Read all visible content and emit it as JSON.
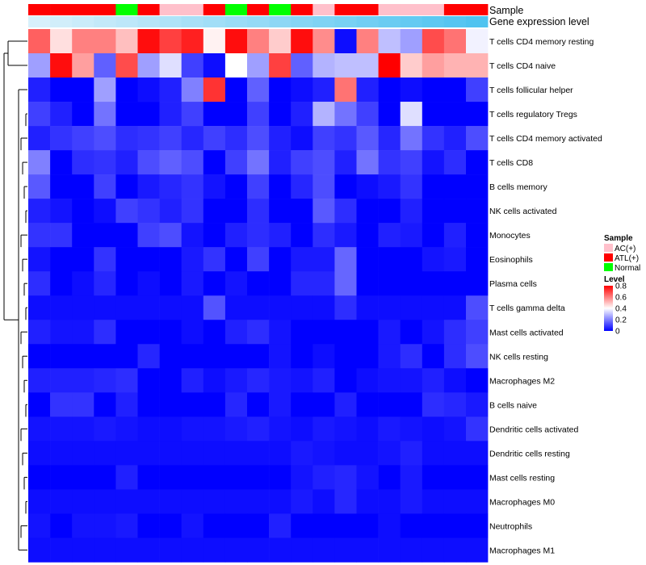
{
  "chart_data": {
    "type": "heatmap",
    "annotation_tracks": [
      {
        "name": "Sample",
        "label": "Sample"
      },
      {
        "name": "Gene expression level",
        "label": "Gene expression level"
      }
    ],
    "sample_annotation": [
      "ATL(+)",
      "ATL(+)",
      "ATL(+)",
      "ATL(+)",
      "Normal",
      "ATL(+)",
      "AC(+)",
      "AC(+)",
      "ATL(+)",
      "Normal",
      "ATL(+)",
      "Normal",
      "ATL(+)",
      "AC(+)",
      "ATL(+)",
      "ATL(+)",
      "AC(+)",
      "AC(+)",
      "AC(+)",
      "ATL(+)",
      "ATL(+)"
    ],
    "expression_level": [
      0.0,
      0.05,
      0.1,
      0.15,
      0.2,
      0.25,
      0.3,
      0.35,
      0.4,
      0.45,
      0.5,
      0.55,
      0.6,
      0.65,
      0.7,
      0.75,
      0.8,
      0.85,
      0.9,
      0.95,
      1.0
    ],
    "rows": [
      "T cells CD4 memory resting",
      "T cells CD4 naive",
      "T cells follicular helper",
      "T cells regulatory  Tregs",
      "T cells CD4 memory activated",
      "T cells CD8",
      "B cells memory",
      "NK cells activated",
      "Monocytes",
      "Eosinophils",
      "Plasma cells",
      "T cells gamma delta",
      "Mast cells activated",
      "NK cells resting",
      "Macrophages M2",
      "B cells naive",
      "Dendritic cells activated",
      "Dendritic cells resting",
      "Mast cells resting",
      "Macrophages M0",
      "Neutrophils",
      "Macrophages M1"
    ],
    "values": [
      [
        0.65,
        0.45,
        0.6,
        0.6,
        0.5,
        0.78,
        0.7,
        0.75,
        0.42,
        0.78,
        0.6,
        0.48,
        0.78,
        0.58,
        0.02,
        0.6,
        0.3,
        0.25,
        0.68,
        0.62,
        0.38
      ],
      [
        0.25,
        0.78,
        0.55,
        0.15,
        0.68,
        0.25,
        0.35,
        0.1,
        0.02,
        0.4,
        0.25,
        0.7,
        0.15,
        0.28,
        0.3,
        0.3,
        0.8,
        0.48,
        0.55,
        0.52,
        0.52
      ],
      [
        0.05,
        0.0,
        0.0,
        0.25,
        0.0,
        0.02,
        0.05,
        0.2,
        0.72,
        0.0,
        0.15,
        0.0,
        0.02,
        0.05,
        0.62,
        0.05,
        0.0,
        0.02,
        0.0,
        0.0,
        0.1
      ],
      [
        0.1,
        0.05,
        0.0,
        0.18,
        0.0,
        0.0,
        0.05,
        0.1,
        0.0,
        0.0,
        0.1,
        0.0,
        0.05,
        0.28,
        0.18,
        0.1,
        0.0,
        0.35,
        0.0,
        0.0,
        0.0
      ],
      [
        0.05,
        0.08,
        0.1,
        0.12,
        0.07,
        0.08,
        0.1,
        0.06,
        0.1,
        0.07,
        0.12,
        0.05,
        0.02,
        0.1,
        0.08,
        0.14,
        0.06,
        0.18,
        0.08,
        0.05,
        0.12
      ],
      [
        0.2,
        0.0,
        0.07,
        0.08,
        0.05,
        0.12,
        0.15,
        0.12,
        0.0,
        0.1,
        0.18,
        0.05,
        0.1,
        0.12,
        0.05,
        0.18,
        0.08,
        0.1,
        0.03,
        0.07,
        0.0
      ],
      [
        0.14,
        0.0,
        0.0,
        0.1,
        0.0,
        0.04,
        0.06,
        0.08,
        0.03,
        0.0,
        0.1,
        0.0,
        0.06,
        0.12,
        0.0,
        0.02,
        0.04,
        0.08,
        0.0,
        0.0,
        0.0
      ],
      [
        0.05,
        0.03,
        0.0,
        0.02,
        0.1,
        0.08,
        0.05,
        0.08,
        0.0,
        0.0,
        0.07,
        0.0,
        0.0,
        0.14,
        0.07,
        0.0,
        0.0,
        0.05,
        0.0,
        0.0,
        0.0
      ],
      [
        0.08,
        0.08,
        0.0,
        0.0,
        0.0,
        0.1,
        0.12,
        0.03,
        0.0,
        0.05,
        0.07,
        0.05,
        0.0,
        0.07,
        0.04,
        0.0,
        0.05,
        0.04,
        0.0,
        0.05,
        0.0
      ],
      [
        0.03,
        0.0,
        0.0,
        0.08,
        0.0,
        0.0,
        0.0,
        0.04,
        0.08,
        0.0,
        0.1,
        0.0,
        0.04,
        0.04,
        0.16,
        0.0,
        0.0,
        0.0,
        0.03,
        0.04,
        0.0
      ],
      [
        0.07,
        0.0,
        0.02,
        0.06,
        0.0,
        0.02,
        0.0,
        0.04,
        0.0,
        0.03,
        0.0,
        0.0,
        0.06,
        0.06,
        0.16,
        0.0,
        0.0,
        0.0,
        0.0,
        0.0,
        0.0
      ],
      [
        0.02,
        0.02,
        0.02,
        0.02,
        0.02,
        0.02,
        0.02,
        0.02,
        0.13,
        0.02,
        0.02,
        0.02,
        0.02,
        0.02,
        0.07,
        0.02,
        0.02,
        0.02,
        0.02,
        0.02,
        0.12
      ],
      [
        0.05,
        0.03,
        0.03,
        0.07,
        0.0,
        0.0,
        0.0,
        0.02,
        0.0,
        0.05,
        0.07,
        0.03,
        0.0,
        0.0,
        0.0,
        0.0,
        0.04,
        0.0,
        0.03,
        0.07,
        0.1
      ],
      [
        0.0,
        0.0,
        0.0,
        0.0,
        0.0,
        0.06,
        0.0,
        0.0,
        0.0,
        0.0,
        0.0,
        0.03,
        0.0,
        0.02,
        0.0,
        0.0,
        0.04,
        0.07,
        0.0,
        0.07,
        0.12
      ],
      [
        0.05,
        0.05,
        0.05,
        0.06,
        0.07,
        0.0,
        0.0,
        0.05,
        0.02,
        0.04,
        0.06,
        0.04,
        0.03,
        0.05,
        0.0,
        0.02,
        0.03,
        0.03,
        0.05,
        0.02,
        0.0
      ],
      [
        0.0,
        0.08,
        0.08,
        0.0,
        0.05,
        0.0,
        0.0,
        0.0,
        0.0,
        0.06,
        0.0,
        0.04,
        0.0,
        0.0,
        0.05,
        0.0,
        0.0,
        0.0,
        0.07,
        0.06,
        0.04
      ],
      [
        0.03,
        0.03,
        0.03,
        0.04,
        0.03,
        0.02,
        0.02,
        0.03,
        0.03,
        0.04,
        0.05,
        0.03,
        0.02,
        0.04,
        0.03,
        0.02,
        0.04,
        0.03,
        0.02,
        0.03,
        0.08
      ],
      [
        0.02,
        0.02,
        0.02,
        0.02,
        0.02,
        0.02,
        0.02,
        0.02,
        0.02,
        0.02,
        0.02,
        0.02,
        0.04,
        0.03,
        0.02,
        0.02,
        0.03,
        0.05,
        0.02,
        0.02,
        0.02
      ],
      [
        0.0,
        0.0,
        0.0,
        0.0,
        0.05,
        0.0,
        0.0,
        0.0,
        0.0,
        0.0,
        0.0,
        0.0,
        0.03,
        0.05,
        0.06,
        0.03,
        0.0,
        0.04,
        0.0,
        0.0,
        0.0
      ],
      [
        0.02,
        0.02,
        0.02,
        0.02,
        0.02,
        0.02,
        0.02,
        0.02,
        0.02,
        0.02,
        0.02,
        0.02,
        0.04,
        0.02,
        0.06,
        0.02,
        0.02,
        0.04,
        0.02,
        0.02,
        0.02
      ],
      [
        0.03,
        0.0,
        0.03,
        0.03,
        0.04,
        0.0,
        0.0,
        0.03,
        0.0,
        0.0,
        0.0,
        0.05,
        0.0,
        0.0,
        0.0,
        0.0,
        0.02,
        0.0,
        0.0,
        0.0,
        0.0
      ],
      [
        0.02,
        0.02,
        0.02,
        0.02,
        0.02,
        0.02,
        0.02,
        0.02,
        0.02,
        0.02,
        0.02,
        0.02,
        0.02,
        0.02,
        0.02,
        0.02,
        0.02,
        0.02,
        0.02,
        0.02,
        0.02
      ]
    ],
    "legend_sample": {
      "title": "Sample",
      "entries": [
        {
          "label": "AC(+)",
          "color": "#ffc0cb"
        },
        {
          "label": "ATL(+)",
          "color": "#ff0000"
        },
        {
          "label": "Normal",
          "color": "#00ff00"
        }
      ]
    },
    "legend_level": {
      "title": "Level",
      "range": [
        0,
        0.8
      ],
      "ticks": [
        "0.8",
        "0.6",
        "0.4",
        "0.2",
        "0"
      ],
      "tick_values": [
        0.8,
        0.6,
        0.4,
        0.2,
        0.0
      ]
    },
    "color_scale": {
      "low": "#0000ff",
      "mid": "#ffffff",
      "high": "#ff0000",
      "midpoint": 0.4,
      "max": 0.8
    },
    "expression_colors": {
      "low": "#d8f0fb",
      "high": "#4fc3f0"
    }
  }
}
